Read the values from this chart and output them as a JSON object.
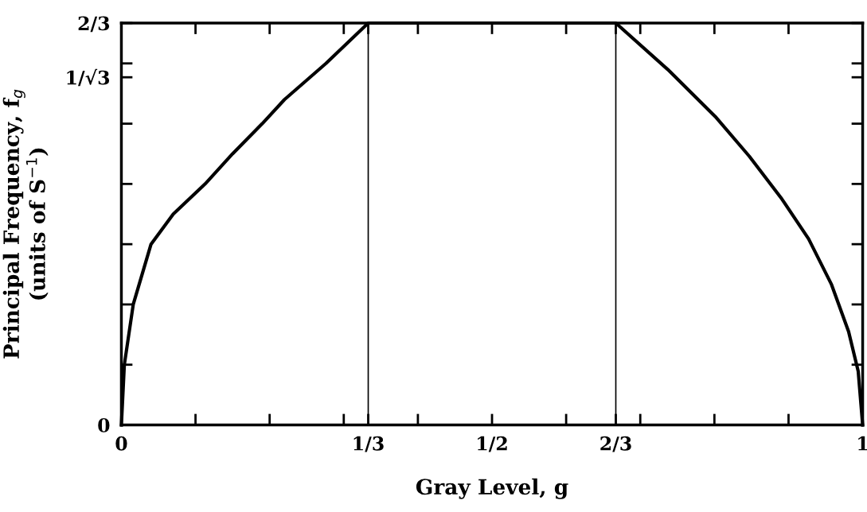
{
  "chart_data": {
    "type": "line",
    "xlabel": "Gray Level, g",
    "ylabel": "Principal Frequency, f$_{g}$\n(units of S$^{−1}$)",
    "series": [
      {
        "color": "#000000",
        "x": [
          0,
          0.004,
          0.016,
          0.04,
          0.07,
          0.113,
          0.15,
          0.19,
          0.22,
          0.276,
          0.333,
          0.5,
          0.667,
          0.737,
          0.801,
          0.847,
          0.891,
          0.927,
          0.958,
          0.981,
          0.994,
          1
        ],
        "values": [
          0,
          0.1,
          0.2,
          0.3,
          0.35,
          0.4,
          0.45,
          0.5,
          0.54,
          0.6,
          0.667,
          0.667,
          0.667,
          0.59,
          0.512,
          0.446,
          0.375,
          0.309,
          0.233,
          0.155,
          0.089,
          0
        ]
      }
    ],
    "xlim": [
      0,
      1
    ],
    "ylim": [
      0,
      0.667
    ],
    "xticks": [
      0,
      {
        "value": 0.1,
        "label": null
      },
      {
        "value": 0.2,
        "label": null
      },
      {
        "value": 0.3,
        "label": null
      },
      {
        "value": 0.333,
        "label": "1/3"
      },
      {
        "value": 0.4,
        "label": null
      },
      {
        "value": 0.5,
        "label": "1/2"
      },
      {
        "value": 0.6,
        "label": null
      },
      {
        "value": 0.667,
        "label": "2/3"
      },
      {
        "value": 0.7,
        "label": null
      },
      {
        "value": 0.8,
        "label": null
      },
      {
        "value": 0.9,
        "label": null
      },
      1
    ],
    "yticks": [
      0,
      {
        "value": 0.1,
        "label": null
      },
      {
        "value": 0.2,
        "label": null
      },
      {
        "value": 0.3,
        "label": null
      },
      {
        "value": 0.4,
        "label": null
      },
      {
        "value": 0.5,
        "label": null
      },
      {
        "value": 0.6,
        "label": null
      },
      {
        "value": 0.577,
        "label": "1/√3"
      },
      {
        "value": 0.667,
        "label": "2/3"
      }
    ],
    "ref_lines": [
      {
        "axis": "x",
        "value": 0.333,
        "color": "#000000"
      },
      {
        "axis": "x",
        "value": 0.667,
        "color": "#000000"
      }
    ],
    "grid": false,
    "legend": false,
    "marker": "none",
    "line_style": "solid"
  }
}
